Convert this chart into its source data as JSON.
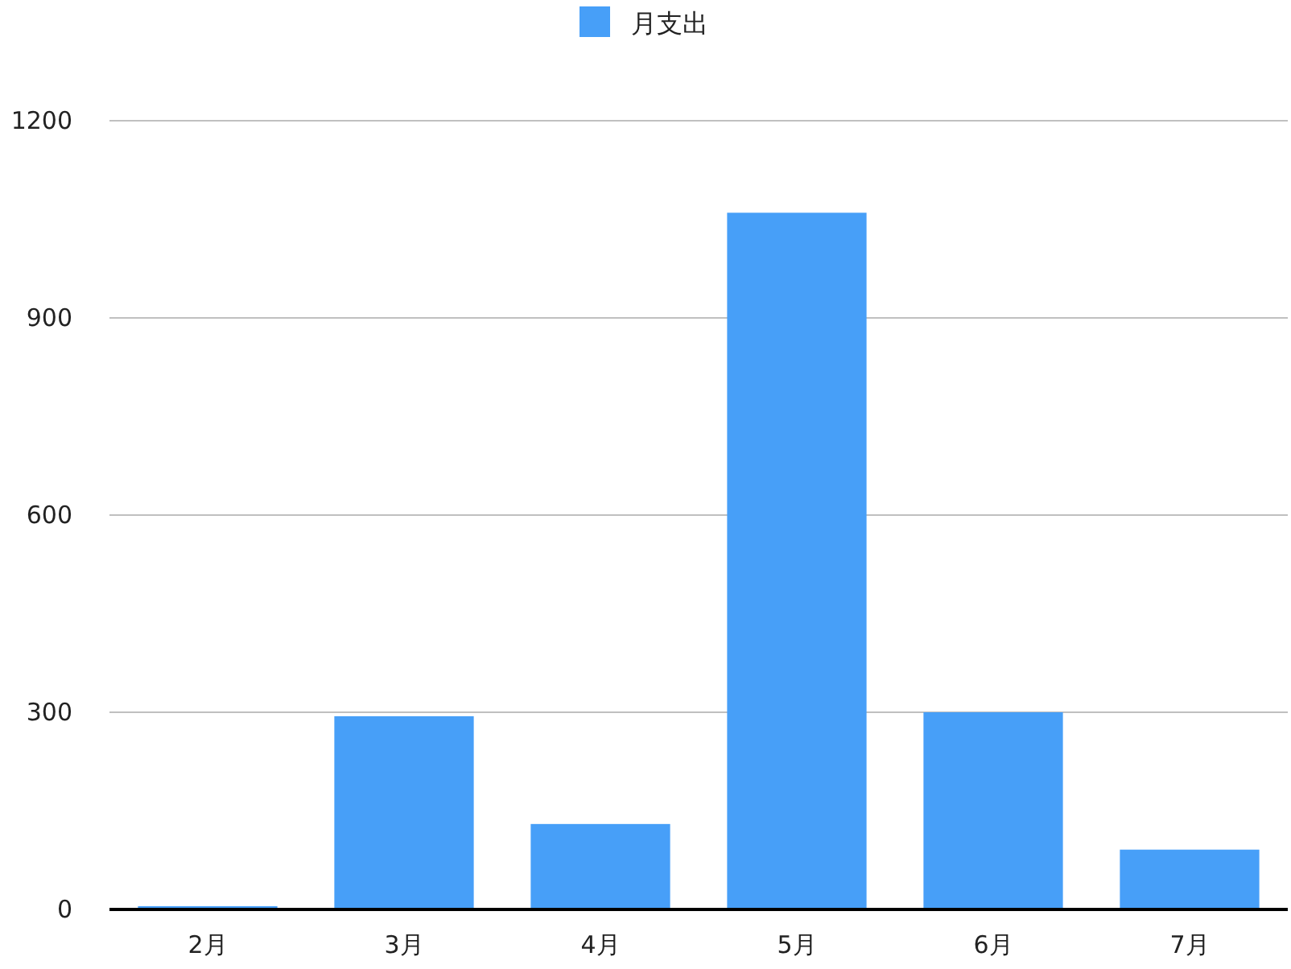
{
  "chart_data": {
    "type": "bar",
    "categories": [
      "2月",
      "3月",
      "4月",
      "5月",
      "6月",
      "7月"
    ],
    "series": [
      {
        "name": "月支出",
        "color": "#479ff8",
        "values": [
          5,
          294,
          130,
          1060,
          300,
          91
        ]
      }
    ],
    "ylim": [
      0,
      1200
    ],
    "yticks": [
      0,
      300,
      600,
      900,
      1200
    ],
    "grid": "y",
    "legend": "top"
  }
}
